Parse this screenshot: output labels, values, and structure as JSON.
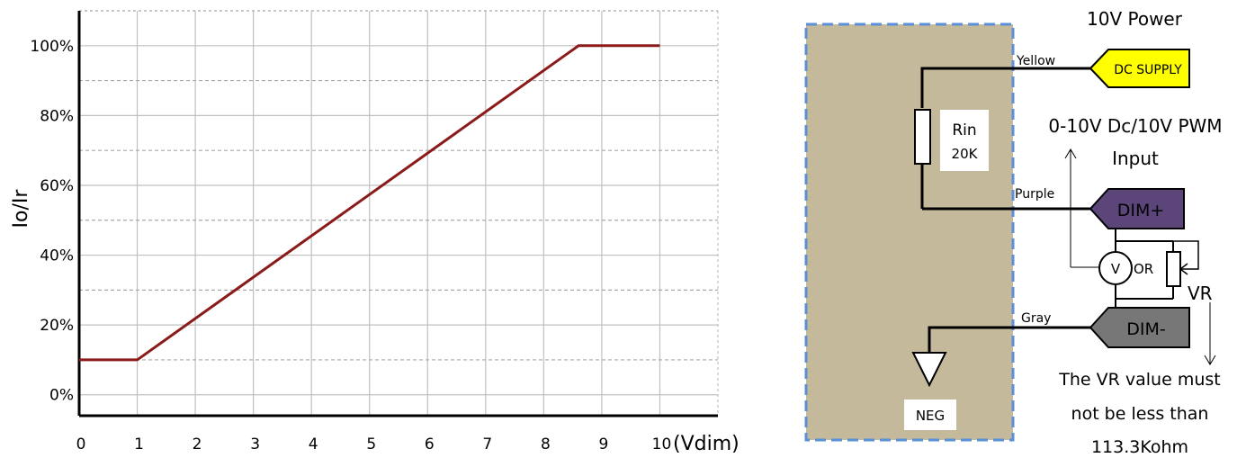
{
  "chart_data": {
    "type": "line",
    "title": "",
    "xlabel": "(Vdim)",
    "ylabel": "Io/Ir",
    "x_ticks": [
      "0",
      "1",
      "2",
      "3",
      "4",
      "5",
      "6",
      "7",
      "8",
      "9",
      "10"
    ],
    "y_ticks": [
      "0%",
      "20%",
      "40%",
      "60%",
      "80%",
      "100%"
    ],
    "xlim": [
      0,
      11
    ],
    "ylim": [
      -6,
      110
    ],
    "grid": true,
    "series": [
      {
        "x": [
          0,
          1,
          8.6,
          10
        ],
        "y": [
          10,
          10,
          100,
          100
        ]
      }
    ]
  },
  "colors": {
    "line": "#8b1a1a",
    "grid_major": "#c0c0c0",
    "grid_minor": "#a8a8a8",
    "box_fill": "#c4b99a",
    "box_border": "#5b8fd6",
    "dc_supply": "#ffff00",
    "dim_plus": "#5b4579",
    "dim_minus": "#777777"
  },
  "diagram": {
    "power_label": "10V Power",
    "dc_supply": "DC SUPPLY",
    "wire_yellow": "Yellow",
    "resistor_label": "Rin",
    "resistor_value": "20K",
    "input_label_line1": "0-10V Dc/10V PWM",
    "input_label_line2": "Input",
    "wire_purple": "Purple",
    "dim_plus": "DIM+",
    "voltmeter": "V",
    "or_label": "OR",
    "vr_label": "VR",
    "wire_gray": "Gray",
    "dim_minus": "DIM-",
    "neg_label": "NEG",
    "note_line1": "The VR value must",
    "note_line2": "not be less than",
    "note_line3": "113.3Kohm"
  }
}
